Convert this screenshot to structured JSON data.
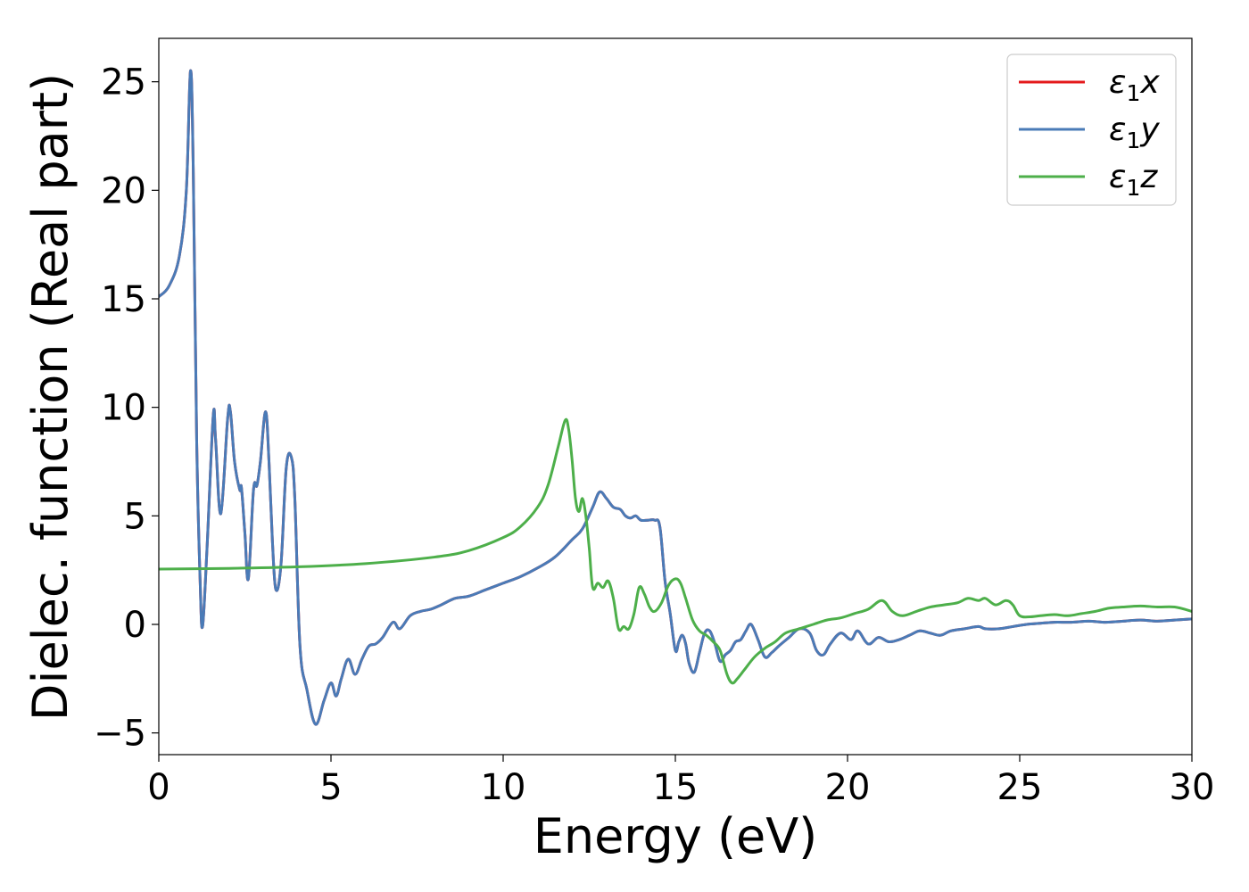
{
  "chart_data": {
    "type": "line",
    "xlabel": "Energy (eV)",
    "ylabel": "Dielec. function (Real part)",
    "xlim": [
      0,
      30
    ],
    "ylim": [
      -6,
      27
    ],
    "xticks": [
      0,
      5,
      10,
      15,
      20,
      25,
      30
    ],
    "yticks": [
      -5,
      0,
      5,
      10,
      15,
      20,
      25
    ],
    "xtick_labels": [
      "0",
      "5",
      "10",
      "15",
      "20",
      "25",
      "30"
    ],
    "ytick_labels": [
      "−5",
      "0",
      "5",
      "10",
      "15",
      "20",
      "25"
    ],
    "grid": false,
    "legend_position": "top-right",
    "series": [
      {
        "name": "ε1x",
        "legend_main": "ε",
        "legend_sub": "1",
        "legend_tail": "x",
        "color": "#e41a1c",
        "x": [
          0,
          0.3,
          0.6,
          0.8,
          0.92,
          1.0,
          1.1,
          1.2,
          1.27,
          1.4,
          1.58,
          1.65,
          1.8,
          2.0,
          2.08,
          2.2,
          2.35,
          2.4,
          2.5,
          2.6,
          2.75,
          2.85,
          2.95,
          3.1,
          3.2,
          3.3,
          3.4,
          3.55,
          3.7,
          3.85,
          3.95,
          4.1,
          4.3,
          4.55,
          4.8,
          5.0,
          5.15,
          5.3,
          5.5,
          5.7,
          5.9,
          6.1,
          6.3,
          6.5,
          6.8,
          7.0,
          7.3,
          7.6,
          7.9,
          8.2,
          8.6,
          9.0,
          9.5,
          10.0,
          10.5,
          11.0,
          11.5,
          12.0,
          12.3,
          12.6,
          12.8,
          13.0,
          13.2,
          13.4,
          13.55,
          13.7,
          13.85,
          14.0,
          14.2,
          14.4,
          14.55,
          14.7,
          14.85,
          15.0,
          15.1,
          15.2,
          15.3,
          15.4,
          15.55,
          15.7,
          15.85,
          16.0,
          16.15,
          16.3,
          16.45,
          16.6,
          16.75,
          16.9,
          17.05,
          17.2,
          17.4,
          17.6,
          17.8,
          18.0,
          18.3,
          18.6,
          18.9,
          19.1,
          19.3,
          19.5,
          19.8,
          20.1,
          20.3,
          20.6,
          20.9,
          21.2,
          21.5,
          21.8,
          22.1,
          22.4,
          22.7,
          23.0,
          23.4,
          23.8,
          24.0,
          24.4,
          24.8,
          25.2,
          25.6,
          26.0,
          26.5,
          27.0,
          27.5,
          28.0,
          28.5,
          29.0,
          29.5,
          30.0
        ],
        "values": [
          15.1,
          15.6,
          17.0,
          20.0,
          25.5,
          21.0,
          8.5,
          2.0,
          -0.1,
          3.5,
          9.6,
          8.5,
          5.1,
          9.5,
          9.8,
          7.5,
          6.2,
          6.3,
          4.2,
          2.1,
          6.2,
          6.4,
          7.5,
          9.8,
          7.5,
          3.8,
          1.6,
          2.8,
          7.2,
          7.7,
          5.8,
          -1.0,
          -3.0,
          -4.6,
          -3.5,
          -2.7,
          -3.3,
          -2.5,
          -1.6,
          -2.3,
          -1.6,
          -1.0,
          -0.9,
          -0.6,
          0.1,
          -0.2,
          0.4,
          0.6,
          0.7,
          0.9,
          1.2,
          1.3,
          1.6,
          1.9,
          2.2,
          2.6,
          3.1,
          3.9,
          4.4,
          5.4,
          6.1,
          5.8,
          5.4,
          5.3,
          5.0,
          4.9,
          5.0,
          4.8,
          4.8,
          4.8,
          4.5,
          2.0,
          0.5,
          -1.2,
          -0.8,
          -0.5,
          -0.9,
          -1.8,
          -2.2,
          -1.3,
          -0.4,
          -0.3,
          -0.9,
          -1.7,
          -1.4,
          -1.2,
          -0.8,
          -0.7,
          -0.3,
          0.0,
          -0.7,
          -1.5,
          -1.3,
          -1.0,
          -0.6,
          -0.2,
          -0.4,
          -1.2,
          -1.4,
          -0.9,
          -0.4,
          -0.7,
          -0.3,
          -0.9,
          -0.6,
          -0.8,
          -0.7,
          -0.5,
          -0.3,
          -0.4,
          -0.5,
          -0.3,
          -0.2,
          -0.1,
          -0.2,
          -0.2,
          -0.1,
          0.0,
          0.05,
          0.1,
          0.1,
          0.15,
          0.1,
          0.15,
          0.2,
          0.15,
          0.2,
          0.25
        ]
      },
      {
        "name": "ε1y",
        "legend_main": "ε",
        "legend_sub": "1",
        "legend_tail": "y",
        "color": "#4a7bb7",
        "x": [
          0,
          0.3,
          0.6,
          0.8,
          0.92,
          1.0,
          1.1,
          1.2,
          1.27,
          1.4,
          1.58,
          1.65,
          1.8,
          2.0,
          2.08,
          2.2,
          2.35,
          2.4,
          2.5,
          2.6,
          2.75,
          2.85,
          2.95,
          3.1,
          3.2,
          3.3,
          3.4,
          3.55,
          3.7,
          3.85,
          3.95,
          4.1,
          4.3,
          4.55,
          4.8,
          5.0,
          5.15,
          5.3,
          5.5,
          5.7,
          5.9,
          6.1,
          6.3,
          6.5,
          6.8,
          7.0,
          7.3,
          7.6,
          7.9,
          8.2,
          8.6,
          9.0,
          9.5,
          10.0,
          10.5,
          11.0,
          11.5,
          12.0,
          12.3,
          12.6,
          12.8,
          13.0,
          13.2,
          13.4,
          13.55,
          13.7,
          13.85,
          14.0,
          14.2,
          14.4,
          14.55,
          14.7,
          14.85,
          15.0,
          15.1,
          15.2,
          15.3,
          15.4,
          15.55,
          15.7,
          15.85,
          16.0,
          16.15,
          16.3,
          16.45,
          16.6,
          16.75,
          16.9,
          17.05,
          17.2,
          17.4,
          17.6,
          17.8,
          18.0,
          18.3,
          18.6,
          18.9,
          19.1,
          19.3,
          19.5,
          19.8,
          20.1,
          20.3,
          20.6,
          20.9,
          21.2,
          21.5,
          21.8,
          22.1,
          22.4,
          22.7,
          23.0,
          23.4,
          23.8,
          24.0,
          24.4,
          24.8,
          25.2,
          25.6,
          26.0,
          26.5,
          27.0,
          27.5,
          28.0,
          28.5,
          29.0,
          29.5,
          30.0
        ],
        "values": [
          15.1,
          15.6,
          17.0,
          20.0,
          25.5,
          21.0,
          8.5,
          2.0,
          -0.1,
          3.5,
          9.6,
          8.5,
          5.1,
          9.5,
          9.8,
          7.5,
          6.2,
          6.3,
          4.2,
          2.1,
          6.2,
          6.4,
          7.5,
          9.8,
          7.5,
          3.8,
          1.6,
          2.8,
          7.2,
          7.7,
          5.8,
          -1.0,
          -3.0,
          -4.6,
          -3.5,
          -2.7,
          -3.3,
          -2.5,
          -1.6,
          -2.3,
          -1.6,
          -1.0,
          -0.9,
          -0.6,
          0.1,
          -0.2,
          0.4,
          0.6,
          0.7,
          0.9,
          1.2,
          1.3,
          1.6,
          1.9,
          2.2,
          2.6,
          3.1,
          3.9,
          4.4,
          5.4,
          6.1,
          5.8,
          5.4,
          5.3,
          5.0,
          4.9,
          5.0,
          4.8,
          4.8,
          4.8,
          4.5,
          2.0,
          0.5,
          -1.2,
          -0.8,
          -0.5,
          -0.9,
          -1.8,
          -2.2,
          -1.3,
          -0.4,
          -0.3,
          -0.9,
          -1.7,
          -1.4,
          -1.2,
          -0.8,
          -0.7,
          -0.3,
          0.0,
          -0.7,
          -1.5,
          -1.3,
          -1.0,
          -0.6,
          -0.2,
          -0.4,
          -1.2,
          -1.4,
          -0.9,
          -0.4,
          -0.7,
          -0.3,
          -0.9,
          -0.6,
          -0.8,
          -0.7,
          -0.5,
          -0.3,
          -0.4,
          -0.5,
          -0.3,
          -0.2,
          -0.1,
          -0.2,
          -0.2,
          -0.1,
          0.0,
          0.05,
          0.1,
          0.1,
          0.15,
          0.1,
          0.15,
          0.2,
          0.15,
          0.2,
          0.25
        ]
      },
      {
        "name": "ε1z",
        "legend_main": "ε",
        "legend_sub": "1",
        "legend_tail": "z",
        "color": "#4daf4a",
        "x": [
          0,
          2,
          4,
          6,
          8,
          9,
          10,
          10.5,
          11.0,
          11.3,
          11.6,
          11.8,
          11.9,
          12.0,
          12.1,
          12.2,
          12.3,
          12.4,
          12.5,
          12.6,
          12.75,
          12.9,
          13.05,
          13.2,
          13.35,
          13.5,
          13.65,
          13.8,
          13.95,
          14.1,
          14.25,
          14.4,
          14.6,
          14.8,
          15.0,
          15.15,
          15.3,
          15.5,
          15.7,
          15.9,
          16.1,
          16.3,
          16.5,
          16.65,
          16.8,
          17.0,
          17.3,
          17.6,
          17.9,
          18.2,
          18.6,
          19.0,
          19.4,
          19.8,
          20.2,
          20.6,
          21.0,
          21.3,
          21.6,
          22.0,
          22.4,
          22.8,
          23.2,
          23.5,
          23.8,
          24.0,
          24.3,
          24.6,
          24.8,
          25.0,
          25.3,
          25.6,
          26.0,
          26.4,
          26.8,
          27.2,
          27.6,
          28.0,
          28.5,
          29.0,
          29.5,
          30.0
        ],
        "values": [
          2.55,
          2.58,
          2.65,
          2.8,
          3.1,
          3.4,
          4.0,
          4.5,
          5.4,
          6.4,
          8.2,
          9.4,
          9.0,
          7.6,
          5.8,
          5.2,
          5.8,
          5.0,
          3.5,
          1.7,
          1.9,
          1.7,
          2.0,
          1.2,
          -0.2,
          -0.1,
          -0.2,
          0.5,
          1.7,
          1.4,
          0.8,
          0.6,
          1.0,
          1.8,
          2.1,
          1.9,
          1.2,
          0.2,
          -0.3,
          -0.5,
          -0.8,
          -1.2,
          -2.3,
          -2.7,
          -2.5,
          -2.1,
          -1.5,
          -1.1,
          -0.8,
          -0.4,
          -0.2,
          0.0,
          0.2,
          0.3,
          0.5,
          0.7,
          1.1,
          0.6,
          0.4,
          0.6,
          0.8,
          0.9,
          1.0,
          1.2,
          1.1,
          1.2,
          0.9,
          1.1,
          0.9,
          0.4,
          0.35,
          0.4,
          0.45,
          0.4,
          0.5,
          0.6,
          0.75,
          0.8,
          0.85,
          0.8,
          0.8,
          0.6
        ]
      }
    ]
  }
}
